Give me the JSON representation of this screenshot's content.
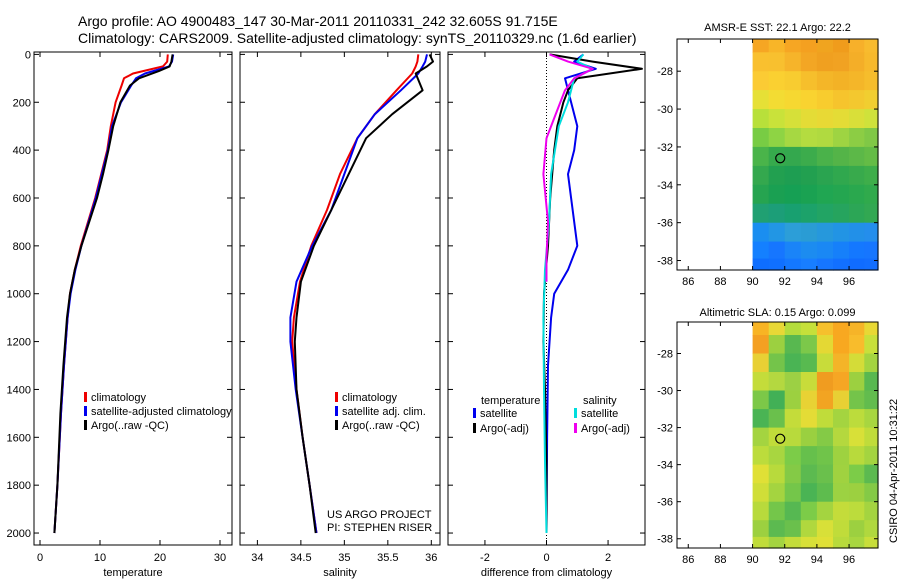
{
  "header": {
    "title_line1": "Argo profile: AO 4900483_147 30-Mar-2011 20110331_242 32.605S 91.715E",
    "title_line2": "Climatology: CARS2009. Satellite-adjusted climatology: synTS_20110329.nc (1.6d earlier)"
  },
  "footer": {
    "project": "US ARGO PROJECT",
    "pi": "PI: STEPHEN RISER",
    "side_credit": "CSIRO 04-Apr-2011 10:31:22"
  },
  "colors": {
    "climatology": "#ee0000",
    "satellite": "#0000ee",
    "argo": "#000000",
    "salinity_satellite": "#00dddd",
    "salinity_argo": "#ee00ee"
  },
  "chart_data": [
    {
      "type": "line",
      "id": "temperature",
      "xlabel": "temperature",
      "ylabel": "",
      "xlim": [
        -1,
        32
      ],
      "ylim": [
        2050,
        -10
      ],
      "xticks": [
        0,
        10,
        20,
        30
      ],
      "yticks": [
        0,
        200,
        400,
        600,
        800,
        1000,
        1200,
        1400,
        1600,
        1800,
        2000
      ],
      "legend": [
        "climatology",
        "satellite-adjusted climatology",
        "Argo(..raw -QC)"
      ],
      "series": [
        {
          "name": "climatology",
          "color": "#ee0000",
          "x": [
            21.3,
            21.2,
            20.5,
            15.5,
            14.0,
            13.6,
            12.6,
            11.8,
            11.2,
            10.2,
            9.2,
            8.0,
            6.8,
            5.8,
            5.0,
            4.6,
            4.0,
            3.5,
            2.9,
            2.4
          ],
          "y": [
            0,
            30,
            50,
            80,
            100,
            130,
            200,
            300,
            400,
            500,
            600,
            700,
            800,
            900,
            1000,
            1100,
            1300,
            1500,
            1800,
            2000
          ]
        },
        {
          "name": "satellite-adjusted climatology",
          "color": "#0000ee",
          "x": [
            22.2,
            22.0,
            21.5,
            17.5,
            16.0,
            15.2,
            13.5,
            12.0,
            11.3,
            10.3,
            9.3,
            8.1,
            6.9,
            5.9,
            5.1,
            4.6,
            4.0,
            3.5,
            2.9,
            2.4
          ],
          "y": [
            0,
            30,
            50,
            80,
            100,
            130,
            200,
            300,
            400,
            500,
            600,
            700,
            800,
            900,
            1000,
            1100,
            1300,
            1500,
            1800,
            2000
          ]
        },
        {
          "name": "Argo(..raw -QC)",
          "color": "#000000",
          "x": [
            22.1,
            21.9,
            21.6,
            19.8,
            16.5,
            15.0,
            13.4,
            12.2,
            11.4,
            10.5,
            9.5,
            8.2,
            6.9,
            5.8,
            5.0,
            4.5,
            3.9,
            3.4,
            2.9,
            2.4
          ],
          "y": [
            0,
            30,
            50,
            70,
            100,
            130,
            200,
            300,
            400,
            500,
            600,
            700,
            800,
            900,
            1000,
            1100,
            1300,
            1500,
            1800,
            2000
          ]
        }
      ]
    },
    {
      "type": "line",
      "id": "salinity",
      "xlabel": "salinity",
      "ylabel": "",
      "xlim": [
        33.8,
        36.1
      ],
      "ylim": [
        2050,
        -10
      ],
      "xticks": [
        34,
        34.5,
        35,
        35.5,
        36
      ],
      "yticks": [
        0,
        200,
        400,
        600,
        800,
        1000,
        1200,
        1400,
        1600,
        1800,
        2000
      ],
      "legend": [
        "climatology",
        "satellite adj. clim.",
        "Argo(..raw -QC)"
      ],
      "series": [
        {
          "name": "climatology",
          "color": "#ee0000",
          "x": [
            35.85,
            35.84,
            35.82,
            35.78,
            35.6,
            35.35,
            35.15,
            34.95,
            34.8,
            34.62,
            34.49,
            34.42,
            34.4,
            34.45,
            34.52,
            34.6,
            34.68
          ],
          "y": [
            0,
            30,
            50,
            80,
            150,
            250,
            350,
            500,
            650,
            800,
            950,
            1100,
            1200,
            1400,
            1600,
            1800,
            2000
          ]
        },
        {
          "name": "satellite adj. clim.",
          "color": "#0000ee",
          "x": [
            35.95,
            35.93,
            35.9,
            35.85,
            35.65,
            35.35,
            35.15,
            35.0,
            34.85,
            34.63,
            34.45,
            34.38,
            34.38,
            34.44,
            34.52,
            34.6,
            34.68
          ],
          "y": [
            0,
            30,
            50,
            80,
            150,
            250,
            350,
            500,
            650,
            800,
            950,
            1100,
            1200,
            1400,
            1600,
            1800,
            2000
          ]
        },
        {
          "name": "Argo(..raw -QC)",
          "color": "#000000",
          "x": [
            35.98,
            36.02,
            35.95,
            35.82,
            35.9,
            35.55,
            35.25,
            35.05,
            34.85,
            34.65,
            34.5,
            34.45,
            34.43,
            34.45,
            34.52,
            34.6,
            34.67
          ],
          "y": [
            0,
            30,
            50,
            80,
            150,
            250,
            350,
            500,
            650,
            800,
            950,
            1100,
            1200,
            1400,
            1600,
            1800,
            2000
          ]
        }
      ]
    },
    {
      "type": "line",
      "id": "difference",
      "xlabel": "difference from climatology",
      "ylabel": "",
      "xlim": [
        -3.2,
        3.2
      ],
      "ylim": [
        2050,
        -10
      ],
      "xticks": [
        -2,
        0,
        2
      ],
      "yticks": [
        0,
        200,
        400,
        600,
        800,
        1000,
        1200,
        1400,
        1600,
        1800,
        2000
      ],
      "legend_headers": [
        "temperature",
        "salinity"
      ],
      "legend": [
        "satellite",
        "Argo(-adj)",
        "satellite",
        "Argo(-adj)"
      ],
      "series": [
        {
          "name": "temperature satellite",
          "color": "#0000ee",
          "x": [
            1.2,
            0.9,
            1.6,
            0.6,
            0.8,
            1.0,
            0.9,
            0.7,
            0.8,
            1.0,
            0.7,
            0.25,
            0.15,
            0.05,
            0.02,
            0.0
          ],
          "y": [
            0,
            30,
            60,
            100,
            200,
            300,
            400,
            500,
            600,
            800,
            900,
            1000,
            1100,
            1300,
            1600,
            2000
          ]
        },
        {
          "name": "temperature Argo(-adj)",
          "color": "#000000",
          "x": [
            0.1,
            1.5,
            3.1,
            1.0,
            0.7,
            0.55,
            0.35,
            0.25,
            0.12,
            0.05,
            -0.08,
            -0.1,
            -0.05,
            0.0,
            0.0
          ],
          "y": [
            0,
            30,
            60,
            100,
            150,
            200,
            300,
            400,
            600,
            800,
            1000,
            1200,
            1400,
            1700,
            2000
          ]
        },
        {
          "name": "salinity satellite",
          "color": "#00dddd",
          "x": [
            1.2,
            1.0,
            1.5,
            0.9,
            0.7,
            0.4,
            0.15,
            0.08,
            -0.05,
            -0.1,
            -0.08,
            -0.05,
            0.0
          ],
          "y": [
            0,
            30,
            60,
            100,
            200,
            300,
            500,
            700,
            900,
            1100,
            1400,
            1700,
            2000
          ]
        },
        {
          "name": "salinity Argo(-adj)",
          "color": "#ee00ee",
          "x": [
            0.1,
            0.7,
            1.5,
            0.9,
            0.6,
            0.3,
            0.0,
            -0.1,
            0.05,
            0.0,
            0.0
          ],
          "y": [
            0,
            30,
            60,
            100,
            150,
            250,
            350,
            500,
            700,
            850,
            950
          ]
        }
      ]
    },
    {
      "type": "heatmap",
      "id": "sst",
      "title": "AMSR-E SST: 22.1 Argo: 22.2",
      "xlim": [
        85.3,
        97.8
      ],
      "ylim": [
        -38.5,
        -26.3
      ],
      "xticks": [
        86,
        88,
        90,
        92,
        94,
        96
      ],
      "yticks": [
        -28,
        -30,
        -32,
        -34,
        -36,
        -38
      ],
      "data_lon_range": [
        90,
        97.8
      ],
      "rows_lat": [
        -26.5,
        -27.5,
        -28.5,
        -29.5,
        -30.5,
        -31.5,
        -32.5,
        -33.5,
        -34.5,
        -35.5,
        -36.5,
        -37.5,
        -38.3
      ],
      "cols_lon": [
        90.5,
        91.5,
        92.5,
        93.5,
        94.5,
        95.5,
        96.5,
        97.4
      ],
      "grid": [
        [
          "#f6a623",
          "#f8b528",
          "#f6a623",
          "#f4a020",
          "#f0a41f",
          "#f09c1c",
          "#f7b02a",
          "#f8bb2e"
        ],
        [
          "#f9c02f",
          "#f8c02f",
          "#f6b42a",
          "#f3a624",
          "#f0a020",
          "#f1a222",
          "#f4ae28",
          "#f7b92c"
        ],
        [
          "#fbcb34",
          "#fad031",
          "#f8cc30",
          "#f6bf2c",
          "#f4b628",
          "#f3b226",
          "#f4b629",
          "#f6bd2c"
        ],
        [
          "#e6e036",
          "#f3dc33",
          "#f6d831",
          "#f9d330",
          "#f8cc2e",
          "#f6c42d",
          "#f3c82f",
          "#f1ce30"
        ],
        [
          "#b8e03a",
          "#c9e23a",
          "#d6e039",
          "#e4dc36",
          "#e8d935",
          "#e4dc36",
          "#d9df39",
          "#cfe23b"
        ],
        [
          "#78cc44",
          "#8ed444",
          "#a6d842",
          "#b4dc40",
          "#b0da40",
          "#9ed442",
          "#8ccd44",
          "#80c846"
        ],
        [
          "#4ab44a",
          "#36aa4c",
          "#34a84e",
          "#3cac4c",
          "#4ab24a",
          "#54b448",
          "#5cb848",
          "#64bc46"
        ],
        [
          "#34a84e",
          "#22a050",
          "#1e9e52",
          "#22a050",
          "#2aa450",
          "#30a84e",
          "#38aa4c",
          "#3eae4a"
        ],
        [
          "#26a450",
          "#1aa052",
          "#16a054",
          "#1aa252",
          "#20a652",
          "#24a650",
          "#2aa84e",
          "#30aa4c"
        ],
        [
          "#20a072",
          "#1c9e78",
          "#18a070",
          "#1ca26a",
          "#22a464",
          "#26a45e",
          "#2ca656",
          "#32a852"
        ],
        [
          "#1a8ef0",
          "#2296e4",
          "#2c9ed8",
          "#2a9cd4",
          "#2698dc",
          "#2294e4",
          "#2290e8",
          "#248eec"
        ],
        [
          "#1480ff",
          "#1676ff",
          "#1a84f8",
          "#1c8cf0",
          "#1a88f4",
          "#1680fa",
          "#1478ff",
          "#1676ff"
        ],
        [
          "#0e6eff",
          "#1070ff",
          "#1478ff",
          "#187eff",
          "#1676ff",
          "#1270ff",
          "#106cff",
          "#126eff"
        ]
      ],
      "marker": {
        "lon": 91.72,
        "lat": -32.6
      }
    },
    {
      "type": "heatmap",
      "id": "sla",
      "title": "Altimetric SLA: 0.15 Argo: 0.099",
      "xlim": [
        85.3,
        97.8
      ],
      "ylim": [
        -38.5,
        -26.3
      ],
      "xticks": [
        86,
        88,
        90,
        92,
        94,
        96
      ],
      "yticks": [
        -28,
        -30,
        -32,
        -34,
        -36,
        -38
      ],
      "data_lon_range": [
        90,
        97.8
      ],
      "rows_lat": [
        -26.5,
        -27.5,
        -28.5,
        -29.5,
        -30.5,
        -31.5,
        -32.5,
        -33.5,
        -34.5,
        -35.5,
        -36.5,
        -37.5,
        -38.3
      ],
      "cols_lon": [
        90.5,
        91.5,
        92.5,
        93.5,
        94.5,
        95.5,
        96.5,
        97.4
      ],
      "grid": [
        [
          "#f8b424",
          "#e8d836",
          "#b4dc3c",
          "#c6e03a",
          "#f6c02c",
          "#f8a820",
          "#f6b428",
          "#e8d834"
        ],
        [
          "#f4a022",
          "#9cd040",
          "#58b850",
          "#7cc84a",
          "#e4d834",
          "#f8a820",
          "#f8bc2c",
          "#c8e03a"
        ],
        [
          "#e8d034",
          "#74c44a",
          "#4ab454",
          "#58ba50",
          "#c8dc3a",
          "#f4b428",
          "#d4dc38",
          "#a4d440"
        ],
        [
          "#c4dc3a",
          "#b4d840",
          "#9cd044",
          "#c8dc3a",
          "#f09c20",
          "#f6a624",
          "#9cd040",
          "#58b850"
        ],
        [
          "#7cc848",
          "#42b056",
          "#9cd040",
          "#e8d234",
          "#f2a422",
          "#e8d034",
          "#74c44a",
          "#62bc4e"
        ],
        [
          "#4ab454",
          "#6ac04c",
          "#c4dc3a",
          "#e4dc36",
          "#c0dc3a",
          "#a4d440",
          "#bcdc3c",
          "#a8d640"
        ],
        [
          "#a4d440",
          "#c0dc3a",
          "#b8da3c",
          "#9ad040",
          "#84ca46",
          "#b4d83e",
          "#d8e038",
          "#c0dc3a"
        ],
        [
          "#bcdc3c",
          "#a8d640",
          "#7ccc48",
          "#66c04c",
          "#70c44a",
          "#9ed240",
          "#b8da3c",
          "#a4d440"
        ],
        [
          "#e0e036",
          "#b8da3c",
          "#84ca46",
          "#5cba50",
          "#6ac04c",
          "#a0d240",
          "#7ccc48",
          "#5cba50"
        ],
        [
          "#d0de38",
          "#a4d440",
          "#74c64a",
          "#4ab454",
          "#5ebc4e",
          "#9cd242",
          "#9cd040",
          "#84ca46"
        ],
        [
          "#b8da3c",
          "#74c64a",
          "#56b852",
          "#7ccc48",
          "#a4d440",
          "#c4dc3a",
          "#bcdc3c",
          "#a4d440"
        ],
        [
          "#9cd040",
          "#5cba50",
          "#6ac04c",
          "#b0d83e",
          "#d8e038",
          "#c0dc3a",
          "#9cd040",
          "#b0d83e"
        ],
        [
          "#c0dc3a",
          "#a4d440",
          "#c4dc3a",
          "#d8e038",
          "#e0e036",
          "#b8da3c",
          "#a8d640",
          "#c8de3a"
        ]
      ],
      "marker": {
        "lon": 91.72,
        "lat": -32.6
      }
    }
  ]
}
